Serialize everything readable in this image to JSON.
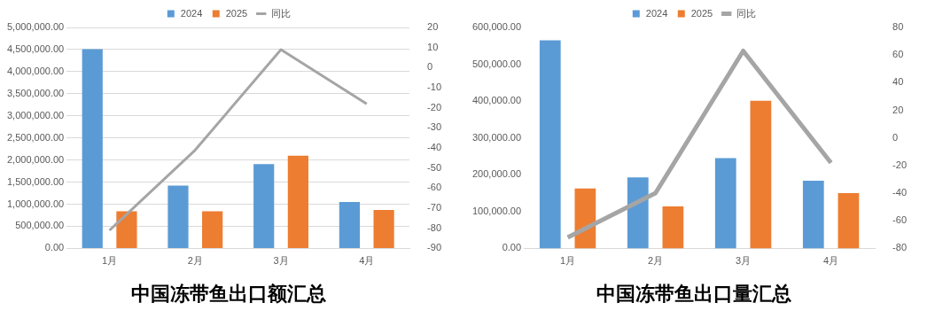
{
  "chart_data": [
    {
      "type": "bar",
      "title": "中国冻带鱼出口额汇总",
      "categories": [
        "1月",
        "2月",
        "3月",
        "4月"
      ],
      "series": [
        {
          "name": "2024",
          "color": "#5b9bd5",
          "values": [
            4510000,
            1420000,
            1910000,
            1050000
          ]
        },
        {
          "name": "2025",
          "color": "#ed7d31",
          "values": [
            840000,
            840000,
            2100000,
            870000
          ]
        },
        {
          "name": "同比",
          "type": "line",
          "axis": "y2",
          "color": "#a5a5a5",
          "values": [
            -81,
            -41,
            9,
            -18
          ]
        }
      ],
      "ylim": [
        0,
        5000000
      ],
      "yticks": [
        {
          "value": 0,
          "label": "0.00"
        },
        {
          "value": 500000,
          "label": "500,000.00"
        },
        {
          "value": 1000000,
          "label": "1,000,000.00"
        },
        {
          "value": 1500000,
          "label": "1,500,000.00"
        },
        {
          "value": 2000000,
          "label": "2,000,000.00"
        },
        {
          "value": 2500000,
          "label": "2,500,000.00"
        },
        {
          "value": 3000000,
          "label": "3,000,000.00"
        },
        {
          "value": 3500000,
          "label": "3,500,000.00"
        },
        {
          "value": 4000000,
          "label": "4,000,000.00"
        },
        {
          "value": 4500000,
          "label": "4,500,000.00"
        },
        {
          "value": 5000000,
          "label": "5,000,000.00"
        }
      ],
      "y2lim": [
        -90,
        20
      ],
      "y2ticks": [
        -90,
        -80,
        -70,
        -60,
        -50,
        -40,
        -30,
        -20,
        -10,
        0,
        10,
        20
      ],
      "grid": "y",
      "legend": "top",
      "marker": "none"
    },
    {
      "type": "bar",
      "title": "中国冻带鱼出口量汇总",
      "categories": [
        "1月",
        "2月",
        "3月",
        "4月"
      ],
      "series": [
        {
          "name": "2024",
          "color": "#5b9bd5",
          "values": [
            565000,
            193000,
            245000,
            184000
          ]
        },
        {
          "name": "2025",
          "color": "#ed7d31",
          "values": [
            163000,
            114000,
            401000,
            150000
          ]
        },
        {
          "name": "同比",
          "type": "line",
          "axis": "y2",
          "color": "#a5a5a5",
          "values": [
            -72,
            -40,
            63,
            -18
          ]
        }
      ],
      "ylim": [
        0,
        600000
      ],
      "yticks": [
        {
          "value": 0,
          "label": "0.00"
        },
        {
          "value": 100000,
          "label": "100,000.00"
        },
        {
          "value": 200000,
          "label": "200,000.00"
        },
        {
          "value": 300000,
          "label": "300,000.00"
        },
        {
          "value": 400000,
          "label": "400,000.00"
        },
        {
          "value": 500000,
          "label": "500,000.00"
        },
        {
          "value": 600000,
          "label": "600,000.00"
        }
      ],
      "y2lim": [
        -80,
        80
      ],
      "y2ticks": [
        -80,
        -60,
        -40,
        -20,
        0,
        20,
        40,
        60,
        80
      ],
      "grid": false,
      "legend": "top",
      "marker": "none"
    }
  ]
}
